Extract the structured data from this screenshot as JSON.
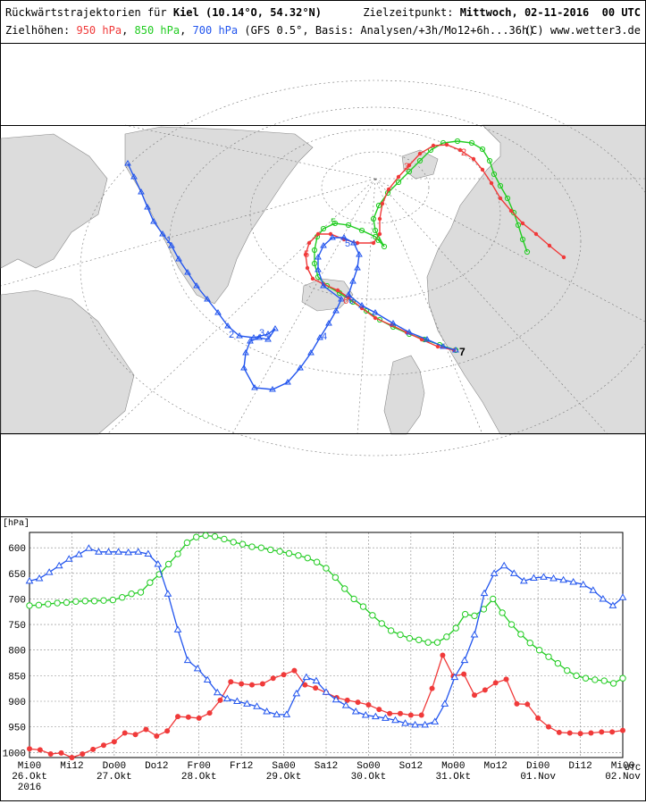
{
  "header": {
    "line1_left_a": "Rückwärtstrajektorien für ",
    "line1_left_b": "Kiel (10.14°O, 54.32°N)",
    "line1_right_a": "Zielzeitpunkt: ",
    "line1_right_b": "Mittwoch, 02-11-2016  00 UTC",
    "line2_label": "Zielhöhen: ",
    "line2_950": "950 hPa",
    "line2_850": "850 hPa",
    "line2_700": "700 hPa",
    "line2_sep1": ", ",
    "line2_sep2": ", ",
    "line2_rest": " (GFS 0.5°, Basis: Analysen/+3h/Mo12+6h...36h)",
    "line2_copy": "(C) www.wetter3.de"
  },
  "colors": {
    "red": "#f03a3a",
    "green": "#22cc22",
    "blue": "#2255ee",
    "land": "#dcdcdc",
    "sea": "#ffffff"
  },
  "map": {
    "end_label": "7",
    "red_labels": [
      "2",
      "3",
      "5",
      "6"
    ],
    "green_labels": [
      "5",
      "6"
    ],
    "blue_labels": [
      "1",
      "2",
      "3",
      "4",
      "5",
      "6"
    ]
  },
  "chart_data": {
    "type": "line",
    "title": "",
    "ylabel": "[hPa]",
    "xlabel": "UTC",
    "ylim": [
      1010,
      570
    ],
    "yticks": [
      600,
      650,
      700,
      750,
      800,
      850,
      900,
      950,
      1000
    ],
    "x_ticks": [
      {
        "label": "Mi00",
        "sub": "26.Okt",
        "sub2": "2016"
      },
      {
        "label": "Mi12",
        "sub": ""
      },
      {
        "label": "Do00",
        "sub": "27.Okt"
      },
      {
        "label": "Do12",
        "sub": ""
      },
      {
        "label": "Fr00",
        "sub": "28.Okt"
      },
      {
        "label": "Fr12",
        "sub": ""
      },
      {
        "label": "Sa00",
        "sub": "29.Okt"
      },
      {
        "label": "Sa12",
        "sub": ""
      },
      {
        "label": "So00",
        "sub": "30.Okt"
      },
      {
        "label": "So12",
        "sub": ""
      },
      {
        "label": "Mo00",
        "sub": "31.Okt"
      },
      {
        "label": "Mo12",
        "sub": ""
      },
      {
        "label": "Di00",
        "sub": "01.Nov"
      },
      {
        "label": "Di12",
        "sub": ""
      },
      {
        "label": "Mi00",
        "sub": "02.Nov"
      }
    ],
    "grid": true,
    "series": [
      {
        "name": "950 hPa",
        "color": "#f03a3a",
        "marker": "filled-circle",
        "values": [
          993,
          995,
          1003,
          1001,
          1010,
          1003,
          994,
          986,
          979,
          962,
          965,
          955,
          968,
          958,
          930,
          931,
          933,
          923,
          898,
          862,
          866,
          868,
          866,
          855,
          848,
          840,
          868,
          874,
          883,
          893,
          898,
          902,
          907,
          916,
          924,
          924,
          927,
          927,
          875,
          810,
          851,
          847,
          888,
          878,
          864,
          857,
          905,
          906,
          933,
          950,
          961,
          962,
          963,
          962,
          960,
          960,
          957
        ]
      },
      {
        "name": "850 hPa",
        "color": "#22cc22",
        "marker": "open-circle",
        "values": [
          713,
          712,
          710,
          708,
          707,
          705,
          704,
          704,
          703,
          702,
          697,
          690,
          687,
          668,
          652,
          632,
          612,
          590,
          579,
          576,
          578,
          583,
          589,
          593,
          598,
          600,
          604,
          607,
          611,
          615,
          620,
          628,
          640,
          658,
          680,
          700,
          715,
          732,
          748,
          762,
          770,
          777,
          780,
          785,
          785,
          774,
          757,
          730,
          733,
          720,
          700,
          727,
          750,
          769,
          786,
          800,
          813,
          826,
          840,
          850,
          855,
          858,
          860,
          865,
          855
        ]
      },
      {
        "name": "700 hPa",
        "color": "#2255ee",
        "marker": "open-triangle",
        "values": [
          665,
          660,
          648,
          635,
          622,
          613,
          601,
          608,
          608,
          608,
          609,
          608,
          612,
          632,
          690,
          760,
          820,
          836,
          858,
          883,
          895,
          900,
          905,
          910,
          920,
          926,
          926,
          885,
          853,
          860,
          882,
          897,
          908,
          920,
          927,
          930,
          933,
          937,
          943,
          946,
          946,
          940,
          905,
          853,
          820,
          770,
          689,
          650,
          635,
          650,
          665,
          659,
          657,
          660,
          663,
          667,
          672,
          683,
          700,
          713,
          697
        ]
      }
    ]
  }
}
